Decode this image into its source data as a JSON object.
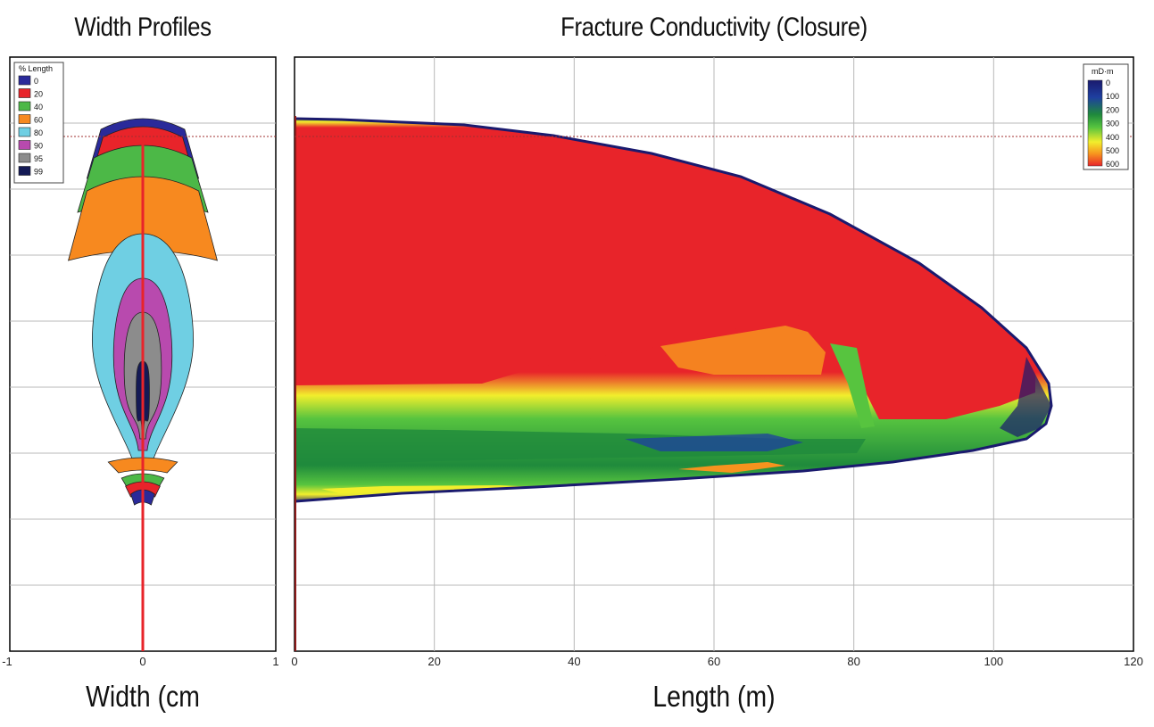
{
  "chart_data": [
    {
      "type": "area",
      "title": "Width Profiles",
      "xlabel": "Width (cm",
      "ylabel": "",
      "xlim": [
        -1,
        1
      ],
      "x_ticks": [
        "-1",
        "0",
        "1"
      ],
      "grid": true,
      "legend": {
        "title": "% Length",
        "placement": "top-left",
        "entries": [
          {
            "label": "0",
            "color": "#2a2a9a"
          },
          {
            "label": "20",
            "color": "#e8242a"
          },
          {
            "label": "40",
            "color": "#4cb847"
          },
          {
            "label": "60",
            "color": "#f7891f"
          },
          {
            "label": "80",
            "color": "#6fcfe3"
          },
          {
            "label": "90",
            "color": "#b84aae"
          },
          {
            "label": "95",
            "color": "#8c8c8c"
          },
          {
            "label": "99",
            "color": "#141a55"
          }
        ]
      },
      "series": [
        {
          "name": "0",
          "half_width_cm": 0.42
        },
        {
          "name": "20",
          "half_width_cm": 0.4
        },
        {
          "name": "40",
          "half_width_cm": 0.49
        },
        {
          "name": "60",
          "half_width_cm": 0.56
        },
        {
          "name": "80",
          "half_width_cm": 0.38
        },
        {
          "name": "90",
          "half_width_cm": 0.22
        },
        {
          "name": "95",
          "half_width_cm": 0.14
        },
        {
          "name": "99",
          "half_width_cm": 0.05
        }
      ]
    },
    {
      "type": "heatmap",
      "title": "Fracture Conductivity (Closure)",
      "xlabel": "Length (m)",
      "ylabel": "",
      "xlim": [
        0,
        120
      ],
      "x_ticks": [
        "0",
        "20",
        "40",
        "60",
        "80",
        "100",
        "120"
      ],
      "fracture_length_m": 108,
      "grid": true,
      "colorbar": {
        "title": "mD·m",
        "placement": "top-right",
        "ticks": [
          "0",
          "100",
          "200",
          "300",
          "400",
          "500",
          "600"
        ],
        "colors": [
          "#1a1a6e",
          "#1e3fa0",
          "#1f8a3c",
          "#57c43f",
          "#f2ee2c",
          "#f7931e",
          "#e8242a"
        ]
      }
    }
  ]
}
